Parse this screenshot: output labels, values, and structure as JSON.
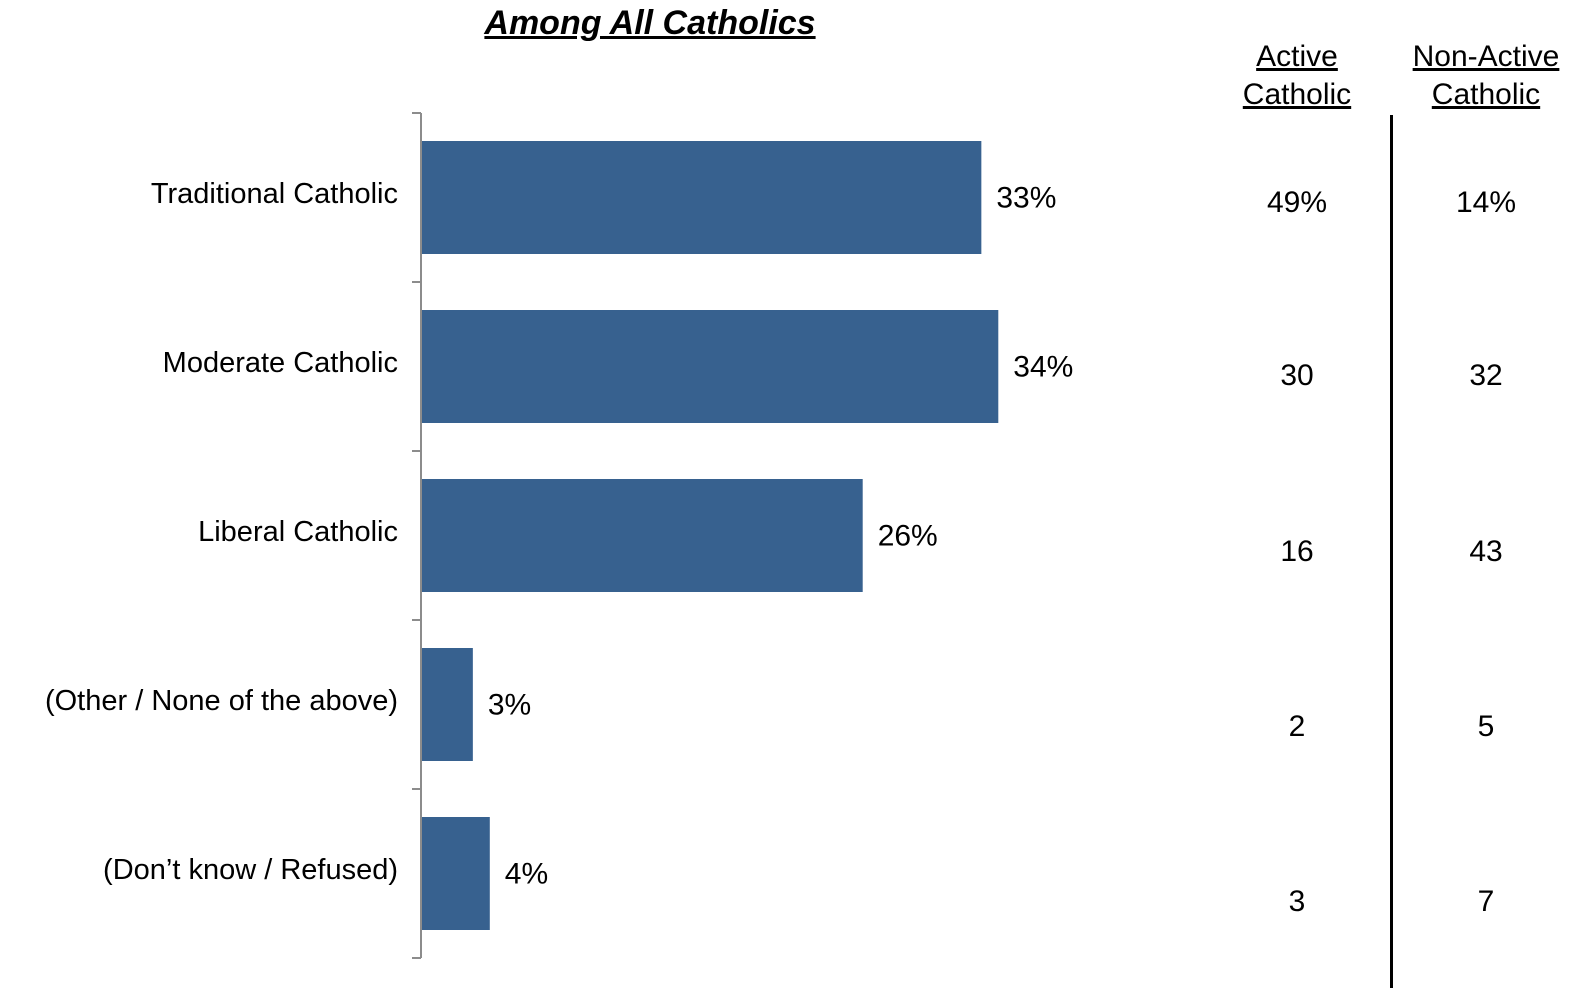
{
  "chart_data": {
    "type": "bar",
    "orientation": "horizontal",
    "title": "Among All Catholics",
    "categories": [
      "Traditional Catholic",
      "Moderate Catholic",
      "Liberal Catholic",
      "(Other / None of the above)",
      "(Don’t know / Refused)"
    ],
    "values": [
      33,
      34,
      26,
      3,
      4
    ],
    "value_labels": [
      "33%",
      "34%",
      "26%",
      "3%",
      "4%"
    ],
    "bar_color": "#37618F",
    "xlim": [
      0,
      60
    ]
  },
  "table": {
    "columns": [
      {
        "line1": "Active",
        "line2": "Catholic",
        "values": [
          "49%",
          "30",
          "16",
          "2",
          "3"
        ]
      },
      {
        "line1": "Non-Active",
        "line2": "Catholic",
        "values": [
          "14%",
          "32",
          "43",
          "5",
          "7"
        ]
      }
    ]
  }
}
